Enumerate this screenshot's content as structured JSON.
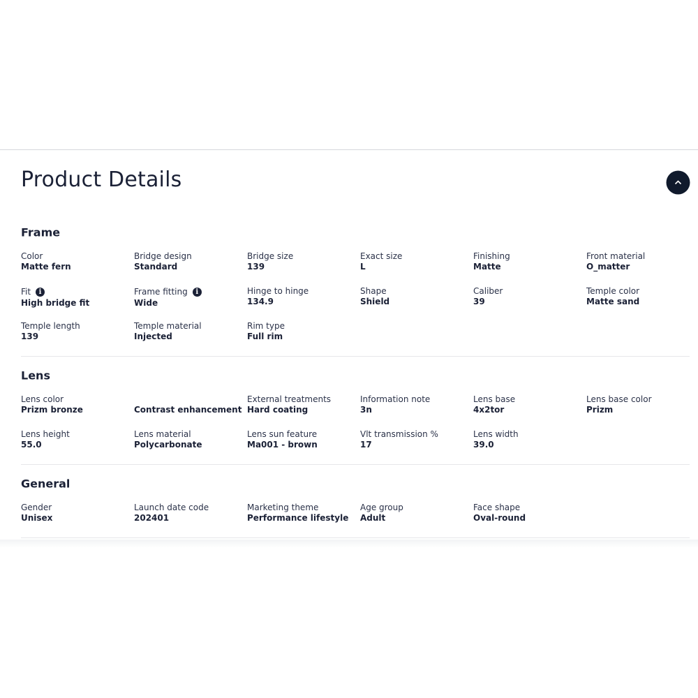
{
  "header": {
    "title": "Product Details"
  },
  "sections": [
    {
      "title": "Frame",
      "items": [
        {
          "label": "Color",
          "value": "Matte fern"
        },
        {
          "label": "Bridge design",
          "value": "Standard"
        },
        {
          "label": "Bridge size",
          "value": "139"
        },
        {
          "label": "Exact size",
          "value": "L"
        },
        {
          "label": "Finishing",
          "value": "Matte"
        },
        {
          "label": "Front material",
          "value": "O_matter"
        },
        {
          "label": "Fit",
          "value": "High bridge fit",
          "info": true
        },
        {
          "label": "Frame fitting",
          "value": "Wide",
          "info": true
        },
        {
          "label": "Hinge to hinge",
          "value": "134.9"
        },
        {
          "label": "Shape",
          "value": "Shield"
        },
        {
          "label": "Caliber",
          "value": "39"
        },
        {
          "label": "Temple color",
          "value": "Matte sand"
        },
        {
          "label": "Temple length",
          "value": "139"
        },
        {
          "label": "Temple material",
          "value": "Injected"
        },
        {
          "label": "Rim type",
          "value": "Full rim"
        }
      ]
    },
    {
      "title": "Lens",
      "items": [
        {
          "label": "Lens color",
          "value": "Prizm bronze"
        },
        {
          "value": "Contrast enhancement"
        },
        {
          "label": "External treatments",
          "value": "Hard coating"
        },
        {
          "label": "Information note",
          "value": "3n"
        },
        {
          "label": "Lens base",
          "value": "4x2tor"
        },
        {
          "label": "Lens base color",
          "value": "Prizm"
        },
        {
          "label": "Lens height",
          "value": "55.0"
        },
        {
          "label": "Lens material",
          "value": "Polycarbonate"
        },
        {
          "label": "Lens sun feature",
          "value": "Ma001 - brown"
        },
        {
          "label": "Vlt transmission %",
          "value": "17"
        },
        {
          "label": "Lens width",
          "value": "39.0"
        }
      ]
    },
    {
      "title": "General",
      "items": [
        {
          "label": "Gender",
          "value": "Unisex"
        },
        {
          "label": "Launch date code",
          "value": "202401"
        },
        {
          "label": "Marketing theme",
          "value": "Performance lifestyle"
        },
        {
          "label": "Age group",
          "value": "Adult"
        },
        {
          "label": "Face shape",
          "value": "Oval-round"
        }
      ]
    }
  ]
}
